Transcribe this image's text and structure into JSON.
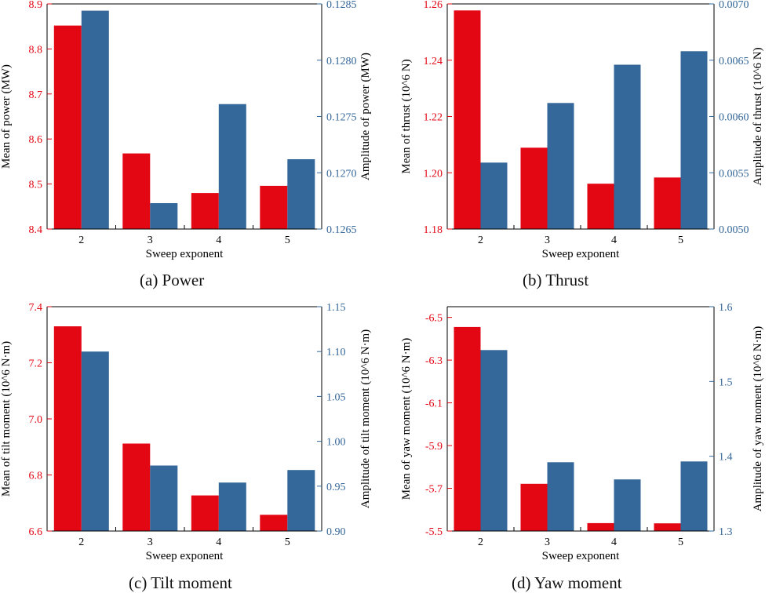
{
  "colors": {
    "left": "#e30613",
    "right": "#34679a",
    "axis": "#000000"
  },
  "chart_data": [
    {
      "type": "bar",
      "caption": "(a)  Power",
      "categories": [
        "2",
        "3",
        "4",
        "5"
      ],
      "xlabel": "Sweep exponent",
      "series": [
        {
          "name": "Mean of power (MW)",
          "axis": "left",
          "values": [
            8.852,
            8.568,
            8.48,
            8.496
          ]
        },
        {
          "name": "Amplitude of power (MW)",
          "axis": "right",
          "values": [
            0.12844,
            0.12673,
            0.12761,
            0.12712
          ]
        }
      ],
      "ylabel": "Mean of power (MW)",
      "ylabel_right": "Amplitude of power (MW)",
      "ylim": [
        8.4,
        8.9
      ],
      "ylim_right": [
        0.1265,
        0.1285
      ],
      "yticks": [
        "8.4",
        "8.5",
        "8.6",
        "8.7",
        "8.8",
        "8.9"
      ],
      "yticks_right": [
        "0.1265",
        "0.1270",
        "0.1275",
        "0.1280",
        "0.1285"
      ]
    },
    {
      "type": "bar",
      "caption": "(b)  Thrust",
      "categories": [
        "2",
        "3",
        "4",
        "5"
      ],
      "xlabel": "Sweep exponent",
      "series": [
        {
          "name": "Mean of thrust (10^6 N)",
          "axis": "left",
          "values": [
            1.2577,
            1.2089,
            1.1961,
            1.1983
          ]
        },
        {
          "name": "Amplitude of thrust (10^6 N)",
          "axis": "right",
          "values": [
            0.00559,
            0.00612,
            0.00646,
            0.00658
          ]
        }
      ],
      "ylabel": "Mean of thrust (10^6 N)",
      "ylabel_right": "Amplitude of thrust (10^6 N)",
      "ylim": [
        1.18,
        1.26
      ],
      "ylim_right": [
        0.005,
        0.007
      ],
      "yticks": [
        "1.18",
        "1.20",
        "1.22",
        "1.24",
        "1.26"
      ],
      "yticks_right": [
        "0.0050",
        "0.0055",
        "0.0060",
        "0.0065",
        "0.0070"
      ]
    },
    {
      "type": "bar",
      "caption": "(c)  Tilt moment",
      "categories": [
        "2",
        "3",
        "4",
        "5"
      ],
      "xlabel": "Sweep exponent",
      "series": [
        {
          "name": "Mean of tilt moment (10^6 N·m)",
          "axis": "left",
          "values": [
            7.33,
            6.912,
            6.727,
            6.658
          ]
        },
        {
          "name": "Amplitude of tilt moment (10^6 N·m)",
          "axis": "right",
          "values": [
            1.1,
            0.973,
            0.954,
            0.968
          ]
        }
      ],
      "ylabel": "Mean of tilt moment (10^6 N·m)",
      "ylabel_right": "Amplitude of tilt moment (10^6 N·m)",
      "ylim": [
        6.6,
        7.4
      ],
      "ylim_right": [
        0.9,
        1.15
      ],
      "yticks": [
        "6.6",
        "6.8",
        "7.0",
        "7.2",
        "7.4"
      ],
      "yticks_right": [
        "0.90",
        "0.95",
        "1.00",
        "1.05",
        "1.10",
        "1.15"
      ]
    },
    {
      "type": "bar",
      "caption": "(d)  Yaw moment",
      "categories": [
        "2",
        "3",
        "4",
        "5"
      ],
      "xlabel": "Sweep exponent",
      "series": [
        {
          "name": "Mean of yaw moment (10^6 N·m)",
          "axis": "left",
          "values": [
            -6.455,
            -5.721,
            -5.537,
            -5.536
          ]
        },
        {
          "name": "Amplitude of yaw moment (10^6 N·m)",
          "axis": "right",
          "values": [
            1.542,
            1.392,
            1.369,
            1.393
          ]
        }
      ],
      "ylabel": "Mean of yaw moment (10^6 N·m)",
      "ylabel_right": "Amplitude of yaw moment (10^6 N·m)",
      "ylim": [
        -5.5,
        -6.55
      ],
      "ylim_right": [
        1.3,
        1.6
      ],
      "yticks": [
        "-5.5",
        "-5.7",
        "-5.9",
        "-6.1",
        "-6.3",
        "-6.5"
      ],
      "yticks_right": [
        "1.3",
        "1.4",
        "1.5",
        "1.6"
      ]
    }
  ]
}
